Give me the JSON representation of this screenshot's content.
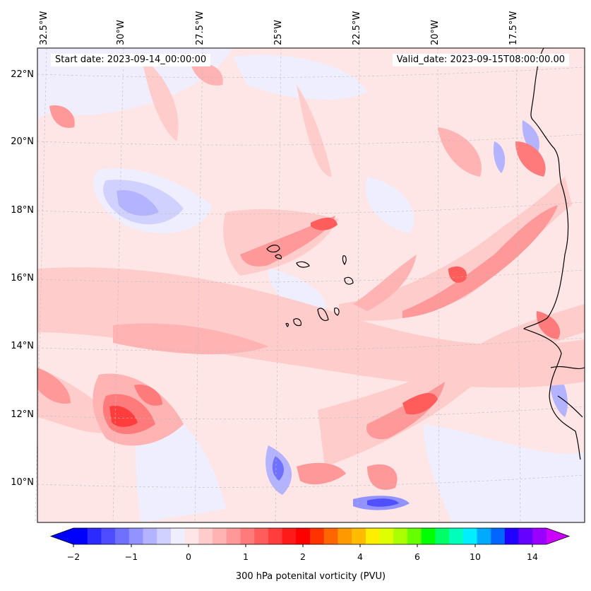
{
  "map": {
    "start_date_text": "Start date: 2023-09-14_00:00:00",
    "valid_date_text": "Valid_date: 2023-09-15T08:00:00.00",
    "lon_labels": [
      "32.5°W",
      "30°W",
      "27.5°W",
      "25°W",
      "22.5°W",
      "20°W",
      "17.5°W"
    ],
    "lat_labels": [
      "22°N",
      "20°N",
      "18°N",
      "16°N",
      "14°N",
      "12°N",
      "10°N"
    ],
    "field": "300 hPa potential vorticity",
    "region": "Cabo Verde islands and West African coast"
  },
  "colorbar": {
    "label": "300 hPa potenital vorticity (PVU)",
    "ticks": [
      "−2",
      "−1",
      "0",
      "1",
      "2",
      "4",
      "6",
      "10",
      "14"
    ],
    "colors": [
      "#0000ff",
      "#2b2bff",
      "#4d4dff",
      "#7070ff",
      "#9393ff",
      "#b3b3ff",
      "#d1d1ff",
      "#eeeeff",
      "#ffe6e6",
      "#ffcccc",
      "#ffb3b3",
      "#ff9999",
      "#ff7a7a",
      "#ff5c5c",
      "#ff3d3d",
      "#ff1a1a",
      "#ff0000",
      "#ff3300",
      "#ff6600",
      "#ff9900",
      "#ffbb00",
      "#ffee00",
      "#ddff00",
      "#aaff00",
      "#66ff00",
      "#00ff00",
      "#00ff66",
      "#00ffbb",
      "#00eeff",
      "#00aaff",
      "#0066ff",
      "#2200ff",
      "#6600ff",
      "#9900ff"
    ],
    "low_extend_color": "#0000ff",
    "high_extend_color": "#cc00ff"
  }
}
